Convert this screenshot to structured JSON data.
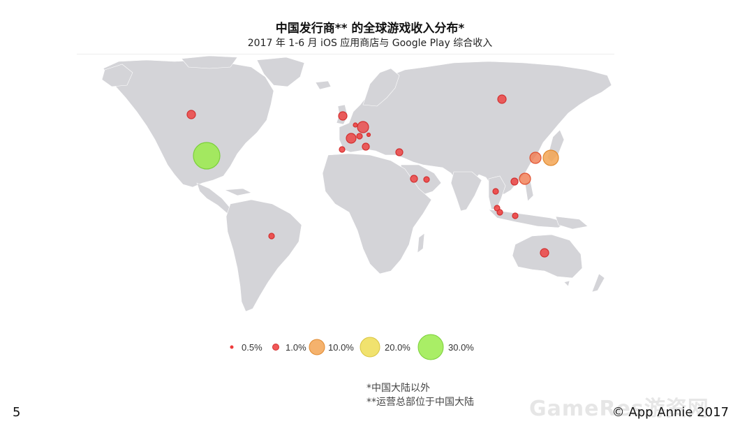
{
  "header": {
    "title": "中国发行商** 的全球游戏收入分布*",
    "subtitle": "2017 年 1-6 月 iOS 应用商店与 Google Play 综合收入"
  },
  "colors": {
    "land": "#d4d4d8",
    "small": "#ee3b3b",
    "c10": "#f3a553",
    "c20": "#eedd55",
    "c30": "#9aeb4b"
  },
  "legend": {
    "items": [
      {
        "label": "0.5%",
        "value": 0.5,
        "color": "#ee3b3b"
      },
      {
        "label": "1.0%",
        "value": 1.0,
        "color": "#ee3b3b"
      },
      {
        "label": "10.0%",
        "value": 10.0,
        "color": "#f3a553"
      },
      {
        "label": "20.0%",
        "value": 20.0,
        "color": "#eedd55"
      },
      {
        "label": "30.0%",
        "value": 30.0,
        "color": "#9aeb4b"
      }
    ]
  },
  "notes": {
    "line1": "*中国大陆以外",
    "line2": "**运营总部位于中国大陆"
  },
  "footer": {
    "page": "5",
    "copyright": "© App Annie 2017",
    "watermark": "GameRes游资网"
  }
}
